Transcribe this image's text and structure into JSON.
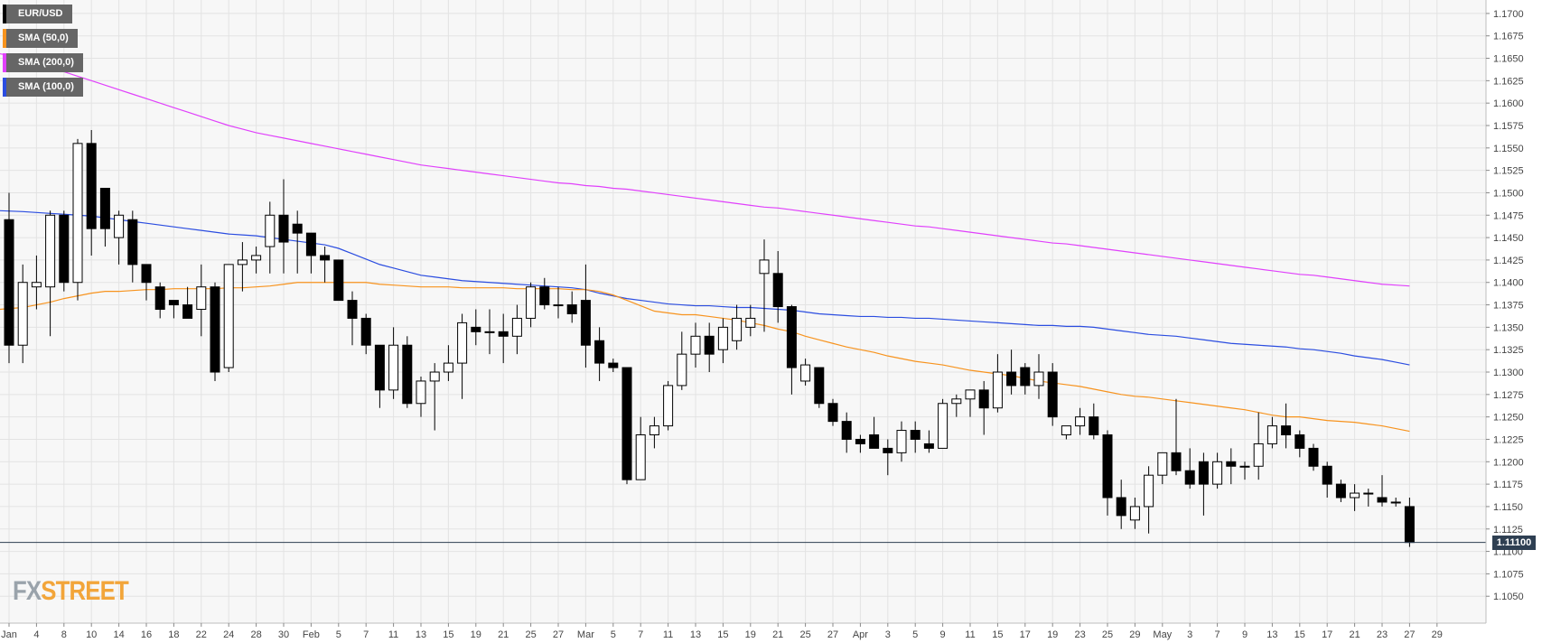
{
  "legend": [
    {
      "label": "EUR/USD",
      "color": "#000000"
    },
    {
      "label": "SMA (50,0)",
      "color": "#f7931e"
    },
    {
      "label": "SMA (200,0)",
      "color": "#e040fb"
    },
    {
      "label": "SMA (100,0)",
      "color": "#2b4de0"
    }
  ],
  "last_price_label": "1.11100",
  "logo": {
    "fx": "FX",
    "street": "STREET"
  },
  "colors": {
    "up_candle": "#ffffff",
    "down_candle": "#000000",
    "sma50": "#f7931e",
    "sma100": "#2b4de0",
    "sma200": "#e040fb",
    "price_line": "#2e3f52",
    "grid": "#e3e3e3",
    "background": "#f7f7f7"
  },
  "chart_data": {
    "type": "candlestick",
    "symbol": "EUR/USD",
    "ylim": [
      1.102,
      1.1715
    ],
    "y_ticks": [
      "1.1050",
      "1.1075",
      "1.1100",
      "1.1125",
      "1.1150",
      "1.1175",
      "1.1200",
      "1.1225",
      "1.1250",
      "1.1275",
      "1.1300",
      "1.1325",
      "1.1350",
      "1.1375",
      "1.1400",
      "1.1425",
      "1.1450",
      "1.1475",
      "1.1500",
      "1.1525",
      "1.1550",
      "1.1575",
      "1.1600",
      "1.1625",
      "1.1650",
      "1.1675",
      "1.1700"
    ],
    "x_labels": [
      "Jan",
      "4",
      "8",
      "10",
      "14",
      "16",
      "18",
      "22",
      "24",
      "28",
      "30",
      "Feb",
      "5",
      "7",
      "11",
      "13",
      "15",
      "19",
      "21",
      "25",
      "27",
      "Mar",
      "5",
      "7",
      "11",
      "13",
      "15",
      "19",
      "21",
      "25",
      "27",
      "Apr",
      "3",
      "5",
      "9",
      "11",
      "15",
      "17",
      "19",
      "23",
      "25",
      "29",
      "May",
      "3",
      "7",
      "9",
      "13",
      "15",
      "17",
      "21",
      "23",
      "27",
      "29"
    ],
    "x_label_slots": [
      0,
      2,
      4,
      6,
      8,
      10,
      12,
      14,
      16,
      18,
      20,
      22,
      24,
      26,
      28,
      30,
      32,
      34,
      36,
      38,
      40,
      42,
      44,
      46,
      48,
      50,
      52,
      54,
      56,
      58,
      60,
      62,
      64,
      66,
      68,
      70,
      72,
      74,
      76,
      78,
      80,
      82,
      84,
      86,
      88,
      90,
      92,
      94,
      96,
      98,
      100,
      102,
      104
    ],
    "grid": true,
    "candles": [
      [
        1.147,
        1.15,
        1.131,
        1.133
      ],
      [
        1.133,
        1.142,
        1.131,
        1.14
      ],
      [
        1.1395,
        1.143,
        1.137,
        1.14
      ],
      [
        1.1395,
        1.148,
        1.134,
        1.1475
      ],
      [
        1.1475,
        1.148,
        1.139,
        1.14
      ],
      [
        1.14,
        1.156,
        1.138,
        1.1555
      ],
      [
        1.1555,
        1.157,
        1.143,
        1.146
      ],
      [
        1.1505,
        1.1505,
        1.144,
        1.146
      ],
      [
        1.145,
        1.148,
        1.142,
        1.1475
      ],
      [
        1.147,
        1.148,
        1.14,
        1.142
      ],
      [
        1.142,
        1.142,
        1.138,
        1.14
      ],
      [
        1.1395,
        1.14,
        1.136,
        1.137
      ],
      [
        1.138,
        1.138,
        1.136,
        1.1375
      ],
      [
        1.1375,
        1.1395,
        1.136,
        1.136
      ],
      [
        1.137,
        1.142,
        1.134,
        1.1395
      ],
      [
        1.1395,
        1.14,
        1.129,
        1.13
      ],
      [
        1.1305,
        1.142,
        1.13,
        1.142
      ],
      [
        1.142,
        1.1445,
        1.139,
        1.1425
      ],
      [
        1.1425,
        1.144,
        1.141,
        1.143
      ],
      [
        1.144,
        1.149,
        1.141,
        1.1475
      ],
      [
        1.1475,
        1.1515,
        1.141,
        1.1445
      ],
      [
        1.1465,
        1.148,
        1.141,
        1.1455
      ],
      [
        1.1455,
        1.1455,
        1.141,
        1.143
      ],
      [
        1.143,
        1.144,
        1.14,
        1.1425
      ],
      [
        1.1425,
        1.1425,
        1.138,
        1.138
      ],
      [
        1.138,
        1.139,
        1.133,
        1.136
      ],
      [
        1.136,
        1.1365,
        1.132,
        1.133
      ],
      [
        1.133,
        1.133,
        1.126,
        1.128
      ],
      [
        1.128,
        1.135,
        1.127,
        1.133
      ],
      [
        1.133,
        1.134,
        1.126,
        1.1265
      ],
      [
        1.1265,
        1.1295,
        1.125,
        1.129
      ],
      [
        1.129,
        1.131,
        1.1235,
        1.13
      ],
      [
        1.13,
        1.133,
        1.129,
        1.131
      ],
      [
        1.131,
        1.1365,
        1.127,
        1.1355
      ],
      [
        1.135,
        1.137,
        1.133,
        1.1345
      ],
      [
        1.1345,
        1.137,
        1.132,
        1.1345
      ],
      [
        1.1345,
        1.1365,
        1.131,
        1.134
      ],
      [
        1.134,
        1.1375,
        1.132,
        1.136
      ],
      [
        1.136,
        1.14,
        1.135,
        1.1395
      ],
      [
        1.1395,
        1.1405,
        1.137,
        1.1375
      ],
      [
        1.1375,
        1.1395,
        1.136,
        1.1375
      ],
      [
        1.1375,
        1.139,
        1.1355,
        1.1365
      ],
      [
        1.138,
        1.142,
        1.1305,
        1.133
      ],
      [
        1.1335,
        1.135,
        1.129,
        1.131
      ],
      [
        1.131,
        1.1315,
        1.13,
        1.1305
      ],
      [
        1.1305,
        1.1305,
        1.1175,
        1.118
      ],
      [
        1.118,
        1.125,
        1.118,
        1.123
      ],
      [
        1.123,
        1.125,
        1.1215,
        1.124
      ],
      [
        1.124,
        1.129,
        1.1235,
        1.1285
      ],
      [
        1.1285,
        1.1345,
        1.128,
        1.132
      ],
      [
        1.132,
        1.1355,
        1.1305,
        1.134
      ],
      [
        1.134,
        1.1355,
        1.13,
        1.132
      ],
      [
        1.1325,
        1.136,
        1.131,
        1.135
      ],
      [
        1.1335,
        1.1375,
        1.1325,
        1.136
      ],
      [
        1.135,
        1.1375,
        1.134,
        1.136
      ],
      [
        1.141,
        1.1448,
        1.1345,
        1.1425
      ],
      [
        1.141,
        1.1435,
        1.1355,
        1.1373
      ],
      [
        1.1373,
        1.1375,
        1.1275,
        1.1305
      ],
      [
        1.129,
        1.1315,
        1.1285,
        1.1308
      ],
      [
        1.1305,
        1.1305,
        1.126,
        1.1265
      ],
      [
        1.1265,
        1.127,
        1.124,
        1.1245
      ],
      [
        1.1245,
        1.1255,
        1.121,
        1.1225
      ],
      [
        1.1225,
        1.123,
        1.121,
        1.122
      ],
      [
        1.123,
        1.125,
        1.1215,
        1.1215
      ],
      [
        1.1215,
        1.1225,
        1.1185,
        1.121
      ],
      [
        1.121,
        1.1245,
        1.12,
        1.1235
      ],
      [
        1.1235,
        1.1245,
        1.121,
        1.1225
      ],
      [
        1.122,
        1.1235,
        1.121,
        1.1215
      ],
      [
        1.1215,
        1.127,
        1.1215,
        1.1265
      ],
      [
        1.1265,
        1.1275,
        1.125,
        1.127
      ],
      [
        1.127,
        1.128,
        1.125,
        1.128
      ],
      [
        1.128,
        1.129,
        1.123,
        1.126
      ],
      [
        1.126,
        1.132,
        1.1255,
        1.13
      ],
      [
        1.13,
        1.1325,
        1.1275,
        1.1285
      ],
      [
        1.1305,
        1.131,
        1.1275,
        1.1285
      ],
      [
        1.1285,
        1.132,
        1.127,
        1.13
      ],
      [
        1.13,
        1.131,
        1.124,
        1.125
      ],
      [
        1.123,
        1.124,
        1.1225,
        1.124
      ],
      [
        1.124,
        1.126,
        1.123,
        1.125
      ],
      [
        1.125,
        1.1265,
        1.1225,
        1.123
      ],
      [
        1.123,
        1.1235,
        1.114,
        1.116
      ],
      [
        1.116,
        1.118,
        1.1125,
        1.114
      ],
      [
        1.1135,
        1.116,
        1.1125,
        1.115
      ],
      [
        1.115,
        1.1195,
        1.112,
        1.1185
      ],
      [
        1.1185,
        1.121,
        1.1175,
        1.121
      ],
      [
        1.121,
        1.127,
        1.1185,
        1.119
      ],
      [
        1.119,
        1.1215,
        1.117,
        1.1175
      ],
      [
        1.12,
        1.121,
        1.114,
        1.1175
      ],
      [
        1.1175,
        1.121,
        1.117,
        1.12
      ],
      [
        1.12,
        1.1215,
        1.1175,
        1.1195
      ],
      [
        1.1195,
        1.12,
        1.118,
        1.1195
      ],
      [
        1.1195,
        1.1255,
        1.118,
        1.122
      ],
      [
        1.122,
        1.125,
        1.1215,
        1.124
      ],
      [
        1.124,
        1.1265,
        1.1215,
        1.123
      ],
      [
        1.123,
        1.1235,
        1.1205,
        1.1215
      ],
      [
        1.1215,
        1.122,
        1.119,
        1.1195
      ],
      [
        1.1195,
        1.12,
        1.116,
        1.1175
      ],
      [
        1.1175,
        1.118,
        1.1155,
        1.116
      ],
      [
        1.116,
        1.1175,
        1.1145,
        1.1165
      ],
      [
        1.1165,
        1.117,
        1.115,
        1.1165
      ],
      [
        1.116,
        1.1185,
        1.115,
        1.1155
      ],
      [
        1.1155,
        1.116,
        1.115,
        1.1155
      ],
      [
        1.115,
        1.116,
        1.1105,
        1.111
      ]
    ],
    "sma50": [
      1.137,
      1.1372,
      1.1375,
      1.1378,
      1.1382,
      1.1385,
      1.1388,
      1.139,
      1.139,
      1.1391,
      1.1392,
      1.1392,
      1.1393,
      1.1393,
      1.1393,
      1.1393,
      1.1394,
      1.1394,
      1.1395,
      1.1396,
      1.1398,
      1.14,
      1.14,
      1.14,
      1.14,
      1.14,
      1.14,
      1.1398,
      1.1397,
      1.1396,
      1.1395,
      1.1395,
      1.1395,
      1.1394,
      1.1394,
      1.1394,
      1.1394,
      1.1393,
      1.1393,
      1.1393,
      1.1393,
      1.1392,
      1.1392,
      1.139,
      1.1386,
      1.138,
      1.1374,
      1.1368,
      1.1366,
      1.1364,
      1.1364,
      1.1362,
      1.136,
      1.1358,
      1.1355,
      1.1352,
      1.1348,
      1.1345,
      1.134,
      1.1336,
      1.1332,
      1.1328,
      1.1325,
      1.1322,
      1.1318,
      1.1315,
      1.1312,
      1.131,
      1.1308,
      1.1305,
      1.1302,
      1.13,
      1.1298,
      1.1296,
      1.1293,
      1.129,
      1.1288,
      1.1286,
      1.1284,
      1.1281,
      1.1278,
      1.1275,
      1.1273,
      1.1272,
      1.127,
      1.1268,
      1.1266,
      1.1264,
      1.1262,
      1.126,
      1.1258,
      1.1255,
      1.1252,
      1.125,
      1.125,
      1.1248,
      1.1246,
      1.1245,
      1.1244,
      1.1242,
      1.124,
      1.1237,
      1.1234
    ],
    "sma100": [
      1.148,
      1.1479,
      1.1478,
      1.1477,
      1.1476,
      1.1475,
      1.1474,
      1.1472,
      1.147,
      1.1468,
      1.1466,
      1.1464,
      1.1462,
      1.146,
      1.1458,
      1.1456,
      1.1454,
      1.1453,
      1.1452,
      1.145,
      1.1448,
      1.1446,
      1.1444,
      1.1442,
      1.1438,
      1.1432,
      1.1426,
      1.142,
      1.1416,
      1.1412,
      1.1408,
      1.1406,
      1.1404,
      1.1402,
      1.1401,
      1.14,
      1.1399,
      1.1398,
      1.1397,
      1.1396,
      1.1395,
      1.1394,
      1.1392,
      1.1388,
      1.1385,
      1.1382,
      1.138,
      1.1378,
      1.1376,
      1.1375,
      1.1374,
      1.1374,
      1.1373,
      1.1372,
      1.1372,
      1.1371,
      1.137,
      1.1369,
      1.1367,
      1.1365,
      1.1364,
      1.1363,
      1.1362,
      1.1362,
      1.1361,
      1.1361,
      1.136,
      1.136,
      1.1359,
      1.1358,
      1.1357,
      1.1356,
      1.1355,
      1.1354,
      1.1353,
      1.1352,
      1.1352,
      1.1351,
      1.1351,
      1.135,
      1.1348,
      1.1346,
      1.1344,
      1.1342,
      1.1341,
      1.134,
      1.1338,
      1.1336,
      1.1334,
      1.1332,
      1.1331,
      1.133,
      1.1329,
      1.1328,
      1.1326,
      1.1325,
      1.1323,
      1.1321,
      1.1318,
      1.1316,
      1.1314,
      1.1311,
      1.1308
    ],
    "sma200": [
      1.1655,
      1.165,
      1.1645,
      1.164,
      1.1635,
      1.163,
      1.1625,
      1.162,
      1.1615,
      1.161,
      1.1605,
      1.16,
      1.1595,
      1.159,
      1.1585,
      1.158,
      1.1575,
      1.1571,
      1.1567,
      1.1564,
      1.1561,
      1.1558,
      1.1555,
      1.1552,
      1.1549,
      1.1546,
      1.1543,
      1.154,
      1.1537,
      1.1534,
      1.1531,
      1.1529,
      1.1527,
      1.1525,
      1.1523,
      1.1521,
      1.1519,
      1.1517,
      1.1515,
      1.1513,
      1.1511,
      1.151,
      1.1508,
      1.1507,
      1.1505,
      1.1504,
      1.1502,
      1.15,
      1.1498,
      1.1496,
      1.1494,
      1.1492,
      1.149,
      1.1488,
      1.1486,
      1.1484,
      1.1483,
      1.1481,
      1.1479,
      1.1477,
      1.1475,
      1.1473,
      1.1471,
      1.1469,
      1.1467,
      1.1465,
      1.1463,
      1.1462,
      1.146,
      1.1458,
      1.1456,
      1.1454,
      1.1452,
      1.145,
      1.1448,
      1.1446,
      1.1444,
      1.1443,
      1.1441,
      1.1439,
      1.1437,
      1.1435,
      1.1433,
      1.1431,
      1.1429,
      1.1427,
      1.1425,
      1.1423,
      1.1421,
      1.1419,
      1.1417,
      1.1415,
      1.1413,
      1.1411,
      1.1409,
      1.1408,
      1.1406,
      1.1404,
      1.1402,
      1.14,
      1.1398,
      1.1397,
      1.1396
    ]
  }
}
